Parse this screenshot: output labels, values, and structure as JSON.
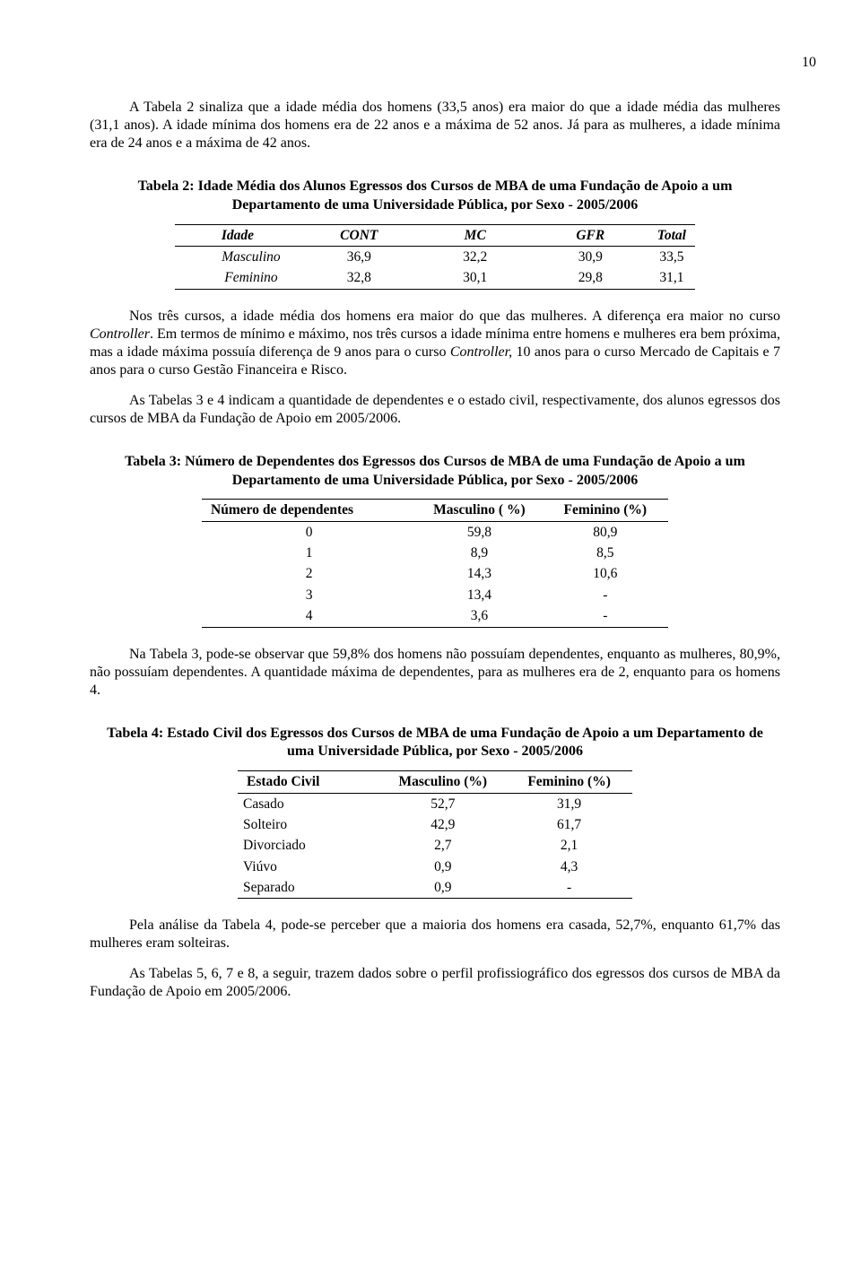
{
  "page_number": "10",
  "para1": "A Tabela 2 sinaliza que a idade média dos homens (33,5 anos) era maior do que a idade média das mulheres (31,1 anos). A idade mínima dos homens era de 22 anos e a máxima de 52 anos. Já para as mulheres, a idade mínima era de 24 anos e a máxima de 42 anos.",
  "table2": {
    "caption": "Tabela 2:  Idade Média dos Alunos Egressos dos Cursos de MBA de uma Fundação de Apoio a um Departamento de uma Universidade Pública, por Sexo - 2005/2006",
    "columns": [
      "Idade",
      "CONT",
      "MC",
      "GFR",
      "Total"
    ],
    "rows": [
      {
        "label": "Masculino",
        "vals": [
          "36,9",
          "32,2",
          "30,9",
          "33,5"
        ]
      },
      {
        "label": "Feminino",
        "vals": [
          "32,8",
          "30,1",
          "29,8",
          "31,1"
        ]
      }
    ]
  },
  "para2_a": "Nos três cursos, a idade média dos homens era maior do que das mulheres. A diferença era maior no curso ",
  "para2_b": "Controller",
  "para2_c": ". Em termos de mínimo e máximo, nos três cursos a idade mínima entre homens e mulheres era bem próxima, mas a idade máxima possuía diferença de 9 anos para o curso ",
  "para2_d": "Controller,",
  "para2_e": " 10 anos para o curso Mercado de Capitais e 7 anos para o curso Gestão Financeira e Risco.",
  "para3": "As Tabelas 3 e 4 indicam a quantidade de dependentes e o estado civil, respectivamente, dos alunos egressos dos cursos de MBA da Fundação de Apoio em 2005/2006.",
  "table3": {
    "caption": "Tabela 3: Número de Dependentes dos Egressos dos Cursos de MBA de uma Fundação de Apoio a um Departamento de uma Universidade Pública, por Sexo - 2005/2006",
    "columns": [
      "Número  de dependentes",
      "Masculino   ( %)",
      "Feminino (%)"
    ],
    "rows": [
      [
        "0",
        "59,8",
        "80,9"
      ],
      [
        "1",
        "8,9",
        "8,5"
      ],
      [
        "2",
        "14,3",
        "10,6"
      ],
      [
        "3",
        "13,4",
        "-"
      ],
      [
        "4",
        "3,6",
        "-"
      ]
    ]
  },
  "para4": "Na Tabela 3, pode-se observar que 59,8% dos homens não possuíam dependentes, enquanto as mulheres, 80,9%, não possuíam dependentes.  A quantidade máxima de dependentes, para as mulheres era de 2, enquanto para os homens 4.",
  "table4": {
    "caption": "Tabela 4: Estado Civil dos Egressos dos Cursos de MBA de uma Fundação de Apoio a um Departamento de uma Universidade Pública, por Sexo - 2005/2006",
    "columns": [
      "Estado Civil",
      "Masculino (%)",
      "Feminino (%)"
    ],
    "rows": [
      [
        "Casado",
        "52,7",
        "31,9"
      ],
      [
        "Solteiro",
        "42,9",
        "61,7"
      ],
      [
        "Divorciado",
        "2,7",
        "2,1"
      ],
      [
        "Viúvo",
        "0,9",
        "4,3"
      ],
      [
        "Separado",
        "0,9",
        "-"
      ]
    ]
  },
  "para5": "Pela análise da Tabela 4, pode-se perceber que a maioria dos homens era casada, 52,7%, enquanto 61,7% das mulheres eram solteiras.",
  "para6": "As Tabelas 5, 6, 7 e 8, a seguir, trazem dados sobre o perfil profissiográfico dos egressos dos cursos de MBA da Fundação de Apoio em 2005/2006."
}
